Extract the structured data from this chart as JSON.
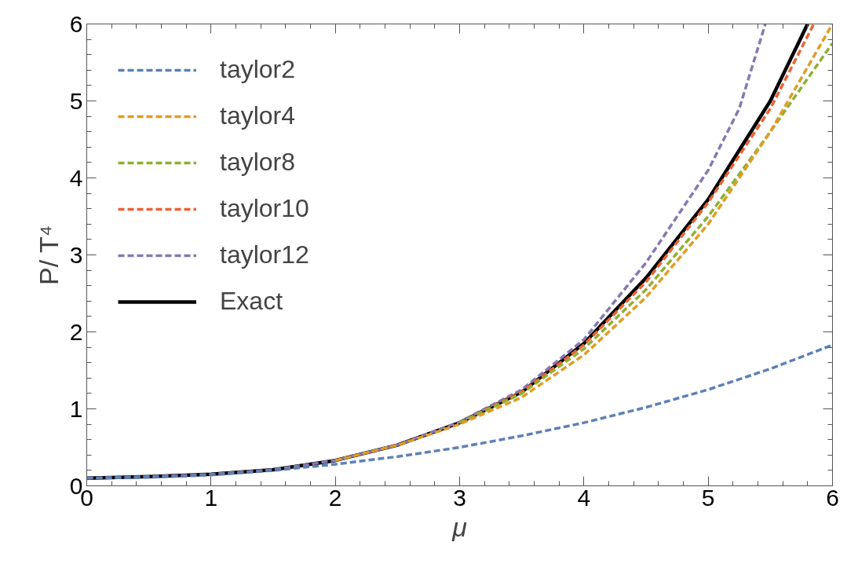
{
  "chart_data": {
    "type": "line",
    "xlabel": "μ",
    "ylabel": "P/ T⁴",
    "xlim": [
      0,
      6
    ],
    "ylim": [
      0,
      6
    ],
    "xticks": [
      0,
      1,
      2,
      3,
      4,
      5,
      6
    ],
    "yticks": [
      0,
      1,
      2,
      3,
      4,
      5,
      6
    ],
    "grid": false,
    "legend": "top left",
    "marker": "none",
    "series": [
      {
        "name": "taylor2",
        "color": "#5e81b5",
        "line_style": "dashed",
        "x": [
          0,
          0.5,
          1,
          1.5,
          2,
          2.5,
          3,
          3.5,
          4,
          4.5,
          5,
          5.5,
          6
        ],
        "values": [
          0.1,
          0.11,
          0.14,
          0.2,
          0.28,
          0.38,
          0.5,
          0.65,
          0.82,
          1.02,
          1.25,
          1.52,
          1.83
        ]
      },
      {
        "name": "taylor4",
        "color": "#e19c24",
        "line_style": "dashed",
        "x": [
          2,
          2.5,
          3,
          3.5,
          4,
          4.5,
          5,
          5.5,
          6
        ],
        "values": [
          0.33,
          0.53,
          0.8,
          1.15,
          1.7,
          2.45,
          3.4,
          4.6,
          6.0
        ]
      },
      {
        "name": "taylor8",
        "color": "#8fb032",
        "line_style": "dashed",
        "x": [
          3,
          3.5,
          4,
          4.5,
          5,
          5.5,
          6
        ],
        "values": [
          0.82,
          1.2,
          1.78,
          2.55,
          3.5,
          4.6,
          5.75
        ]
      },
      {
        "name": "taylor10",
        "color": "#eb6235",
        "line_style": "dashed",
        "x": [
          3,
          3.5,
          4,
          4.5,
          5,
          5.5,
          5.85
        ],
        "values": [
          0.82,
          1.22,
          1.83,
          2.65,
          3.68,
          4.9,
          6.0
        ]
      },
      {
        "name": "taylor12",
        "color": "#8778b3",
        "line_style": "dashed",
        "x": [
          0,
          0.5,
          1,
          1.5,
          2,
          2.5,
          3,
          3.5,
          4,
          4.5,
          5,
          5.25,
          5.46
        ],
        "values": [
          0.1,
          0.12,
          0.15,
          0.21,
          0.33,
          0.53,
          0.83,
          1.25,
          1.9,
          2.9,
          4.1,
          4.9,
          6.0
        ]
      },
      {
        "name": "Exact",
        "color": "#000000",
        "line_style": "solid",
        "x": [
          0,
          0.5,
          1,
          1.5,
          2,
          2.5,
          3,
          3.5,
          4,
          4.5,
          5,
          5.5,
          5.8
        ],
        "values": [
          0.1,
          0.12,
          0.15,
          0.21,
          0.33,
          0.53,
          0.82,
          1.22,
          1.85,
          2.7,
          3.72,
          5.0,
          6.0
        ]
      }
    ]
  }
}
